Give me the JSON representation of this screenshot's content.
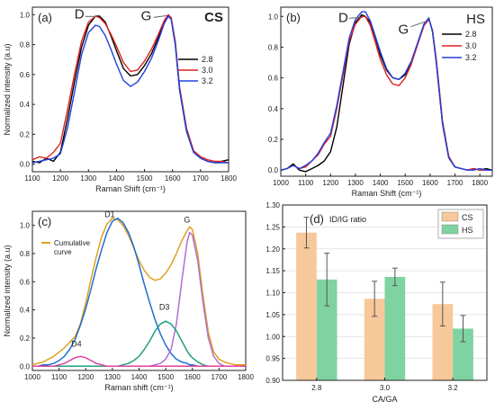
{
  "chart_data": [
    {
      "panel": "(a)",
      "type": "line",
      "corner_label": "CS",
      "xlabel": "Raman Shift (cm⁻¹)",
      "ylabel": "Normalized intensity (a.u)",
      "xlim": [
        1100,
        1800
      ],
      "ylim": [
        -0.05,
        1.05
      ],
      "xticks": [
        1100,
        1200,
        1300,
        1400,
        1500,
        1600,
        1700,
        1800
      ],
      "yticks": [
        0.0,
        0.2,
        0.4,
        0.6,
        0.8,
        1.0
      ],
      "peak_labels": [
        {
          "text": "D",
          "x": 1340,
          "y": 1.0
        },
        {
          "text": "G",
          "x": 1590,
          "y": 1.0
        }
      ],
      "legend": "top-right",
      "x": [
        1100,
        1125,
        1150,
        1175,
        1200,
        1225,
        1250,
        1275,
        1300,
        1325,
        1340,
        1360,
        1380,
        1400,
        1425,
        1450,
        1475,
        1500,
        1525,
        1550,
        1570,
        1585,
        1595,
        1610,
        1625,
        1650,
        1675,
        1700,
        1725,
        1750,
        1775,
        1800
      ],
      "series": [
        {
          "name": "2.8",
          "color": "#000000",
          "values": [
            0.02,
            0.01,
            0.04,
            0.02,
            0.08,
            0.3,
            0.55,
            0.78,
            0.93,
            0.99,
            0.99,
            0.95,
            0.86,
            0.76,
            0.64,
            0.59,
            0.6,
            0.66,
            0.74,
            0.85,
            0.95,
            0.99,
            0.97,
            0.8,
            0.5,
            0.22,
            0.08,
            0.04,
            0.02,
            0.01,
            0.02,
            0.03
          ]
        },
        {
          "name": "3.0",
          "color": "#e02020",
          "values": [
            0.03,
            0.05,
            0.04,
            0.08,
            0.14,
            0.36,
            0.6,
            0.82,
            0.95,
            0.99,
            0.98,
            0.94,
            0.87,
            0.79,
            0.68,
            0.62,
            0.63,
            0.69,
            0.77,
            0.87,
            0.96,
            1.0,
            0.98,
            0.82,
            0.52,
            0.24,
            0.09,
            0.05,
            0.03,
            0.02,
            0.02,
            0.01
          ]
        },
        {
          "name": "3.2",
          "color": "#2040e0",
          "values": [
            0.01,
            0.02,
            0.03,
            0.04,
            0.07,
            0.24,
            0.48,
            0.73,
            0.88,
            0.93,
            0.92,
            0.86,
            0.77,
            0.67,
            0.56,
            0.52,
            0.55,
            0.62,
            0.71,
            0.83,
            0.94,
            0.99,
            0.97,
            0.8,
            0.5,
            0.22,
            0.08,
            0.04,
            0.02,
            0.01,
            0.01,
            0.01
          ]
        }
      ]
    },
    {
      "panel": "(b)",
      "type": "line",
      "corner_label": "HS",
      "xlabel": "Raman Shift (cm⁻¹)",
      "ylabel": "",
      "xlim": [
        1000,
        1850
      ],
      "ylim": [
        -0.04,
        1.06
      ],
      "xticks": [
        1000,
        1100,
        1200,
        1300,
        1400,
        1500,
        1600,
        1700,
        1800
      ],
      "yticks": [
        0.0,
        0.2,
        0.4,
        0.6,
        0.8,
        1.0
      ],
      "peak_labels": [
        {
          "text": "D",
          "x": 1340,
          "y": 1.0
        },
        {
          "text": "G",
          "x": 1595,
          "y": 0.98
        }
      ],
      "legend": "top-right",
      "x": [
        1000,
        1025,
        1050,
        1075,
        1100,
        1125,
        1150,
        1175,
        1200,
        1225,
        1250,
        1275,
        1300,
        1325,
        1340,
        1360,
        1380,
        1400,
        1425,
        1450,
        1475,
        1500,
        1525,
        1550,
        1575,
        1595,
        1610,
        1625,
        1650,
        1675,
        1700,
        1725,
        1750,
        1775,
        1800,
        1825,
        1850
      ],
      "series": [
        {
          "name": "2.8",
          "color": "#000000",
          "values": [
            0.0,
            0.01,
            0.04,
            0.0,
            -0.01,
            0.01,
            0.03,
            0.06,
            0.12,
            0.28,
            0.55,
            0.82,
            0.96,
            1.01,
            1.0,
            0.96,
            0.86,
            0.75,
            0.65,
            0.6,
            0.59,
            0.62,
            0.7,
            0.82,
            0.94,
            0.99,
            0.9,
            0.7,
            0.3,
            0.08,
            0.02,
            0.01,
            0.0,
            0.01,
            0.0,
            0.01,
            0.0
          ]
        },
        {
          "name": "3.0",
          "color": "#e02020",
          "values": [
            0.0,
            0.01,
            0.03,
            0.01,
            0.02,
            0.06,
            0.1,
            0.17,
            0.22,
            0.4,
            0.62,
            0.84,
            0.95,
            1.0,
            1.0,
            0.94,
            0.83,
            0.72,
            0.62,
            0.56,
            0.55,
            0.6,
            0.69,
            0.82,
            0.94,
            0.98,
            0.91,
            0.72,
            0.32,
            0.09,
            0.02,
            0.01,
            0.0,
            0.01,
            0.0,
            0.0,
            0.0
          ]
        },
        {
          "name": "3.2",
          "color": "#2040e0",
          "values": [
            0.0,
            0.01,
            0.03,
            0.01,
            0.03,
            0.06,
            0.11,
            0.18,
            0.24,
            0.42,
            0.64,
            0.86,
            0.98,
            1.03,
            1.03,
            0.97,
            0.87,
            0.77,
            0.66,
            0.6,
            0.59,
            0.63,
            0.71,
            0.83,
            0.95,
            0.99,
            0.9,
            0.7,
            0.3,
            0.08,
            0.02,
            0.01,
            0.0,
            0.0,
            0.01,
            0.0,
            0.0
          ]
        }
      ]
    },
    {
      "panel": "(c)",
      "type": "line",
      "xlabel": "Raman shift (cm⁻¹)",
      "ylabel": "Normalized intensity (a.u)",
      "xlim": [
        1000,
        1800
      ],
      "ylim": [
        -0.03,
        1.1
      ],
      "xticks": [
        1000,
        1100,
        1200,
        1300,
        1400,
        1500,
        1600,
        1700,
        1800
      ],
      "yticks": [
        0.0,
        0.2,
        0.4,
        0.6,
        0.8,
        1.0
      ],
      "legend_label": "Cumulative curve",
      "peak_labels": [
        {
          "text": "D1",
          "x": 1290,
          "y": 1.06
        },
        {
          "text": "G",
          "x": 1580,
          "y": 1.02
        },
        {
          "text": "D3",
          "x": 1495,
          "y": 0.4
        },
        {
          "text": "D4",
          "x": 1165,
          "y": 0.14
        }
      ],
      "x": [
        1000,
        1020,
        1040,
        1060,
        1080,
        1100,
        1120,
        1140,
        1160,
        1180,
        1200,
        1220,
        1240,
        1260,
        1280,
        1300,
        1320,
        1340,
        1360,
        1380,
        1400,
        1420,
        1440,
        1460,
        1480,
        1500,
        1520,
        1540,
        1560,
        1580,
        1590,
        1600,
        1620,
        1640,
        1660,
        1680,
        1700,
        1720,
        1740,
        1760,
        1780,
        1800
      ],
      "series": [
        {
          "name": "Cumulative curve",
          "color": "#e0a020",
          "values": [
            0.01,
            0.02,
            0.03,
            0.05,
            0.07,
            0.1,
            0.13,
            0.17,
            0.21,
            0.3,
            0.45,
            0.62,
            0.78,
            0.92,
            1.01,
            1.05,
            1.04,
            1.0,
            0.93,
            0.84,
            0.75,
            0.68,
            0.63,
            0.61,
            0.62,
            0.66,
            0.72,
            0.8,
            0.89,
            0.96,
            0.99,
            0.97,
            0.8,
            0.5,
            0.24,
            0.1,
            0.05,
            0.03,
            0.02,
            0.01,
            0.01,
            0.01
          ]
        },
        {
          "name": "D1",
          "color": "#1f6fd0",
          "values": [
            0.0,
            0.0,
            0.01,
            0.01,
            0.02,
            0.04,
            0.07,
            0.12,
            0.19,
            0.29,
            0.41,
            0.55,
            0.7,
            0.83,
            0.95,
            1.03,
            1.05,
            1.02,
            0.95,
            0.85,
            0.72,
            0.58,
            0.45,
            0.33,
            0.23,
            0.15,
            0.09,
            0.05,
            0.03,
            0.02,
            0.01,
            0.01,
            0.0,
            0.0,
            0.0,
            0.0,
            0.0,
            0.0,
            0.0,
            0.0,
            0.0,
            0.0
          ]
        },
        {
          "name": "G",
          "color": "#b070d0",
          "values": [
            0.0,
            0.0,
            0.0,
            0.0,
            0.0,
            0.0,
            0.0,
            0.0,
            0.0,
            0.0,
            0.0,
            0.0,
            0.0,
            0.0,
            0.0,
            0.0,
            0.0,
            0.0,
            0.0,
            0.0,
            0.0,
            0.0,
            0.0,
            0.01,
            0.02,
            0.05,
            0.12,
            0.3,
            0.6,
            0.88,
            0.95,
            0.93,
            0.75,
            0.45,
            0.2,
            0.07,
            0.02,
            0.0,
            0.0,
            0.0,
            0.0,
            0.0
          ]
        },
        {
          "name": "D3",
          "color": "#20a080",
          "values": [
            0.0,
            0.0,
            0.0,
            0.0,
            0.0,
            0.0,
            0.0,
            0.0,
            0.0,
            0.0,
            0.0,
            0.0,
            0.0,
            0.0,
            0.0,
            0.0,
            0.0,
            0.01,
            0.02,
            0.04,
            0.07,
            0.12,
            0.18,
            0.25,
            0.3,
            0.32,
            0.3,
            0.25,
            0.18,
            0.11,
            0.08,
            0.06,
            0.03,
            0.01,
            0.0,
            0.0,
            0.0,
            0.0,
            0.0,
            0.0,
            0.0,
            0.0
          ]
        },
        {
          "name": "D4",
          "color": "#e040a0",
          "values": [
            0.0,
            0.0,
            0.0,
            0.0,
            0.0,
            0.01,
            0.02,
            0.04,
            0.06,
            0.07,
            0.06,
            0.04,
            0.02,
            0.01,
            0.0,
            0.0,
            0.0,
            0.0,
            0.0,
            0.0,
            0.0,
            0.0,
            0.0,
            0.0,
            0.0,
            0.0,
            0.0,
            0.0,
            0.0,
            0.0,
            0.0,
            0.0,
            0.0,
            0.0,
            0.0,
            0.0,
            0.0,
            0.0,
            0.0,
            0.0,
            0.0,
            0.0
          ]
        }
      ]
    },
    {
      "panel": "(d)",
      "type": "bar",
      "inset_title": "ID/IG ratio",
      "xlabel": "CA/GA",
      "ylabel": "",
      "categories": [
        "2.8",
        "3.0",
        "3.2"
      ],
      "ylim": [
        0.9,
        1.3
      ],
      "yticks": [
        0.9,
        0.95,
        1.0,
        1.05,
        1.1,
        1.15,
        1.2,
        1.25,
        1.3
      ],
      "grid": true,
      "legend": "top-right",
      "series": [
        {
          "name": "CS",
          "color": "#f7c89a",
          "values": [
            1.237,
            1.086,
            1.074
          ],
          "errors": [
            0.035,
            0.04,
            0.05
          ]
        },
        {
          "name": "HS",
          "color": "#7fd3a0",
          "values": [
            1.13,
            1.136,
            1.018
          ],
          "errors": [
            0.06,
            0.02,
            0.03
          ]
        }
      ]
    }
  ]
}
